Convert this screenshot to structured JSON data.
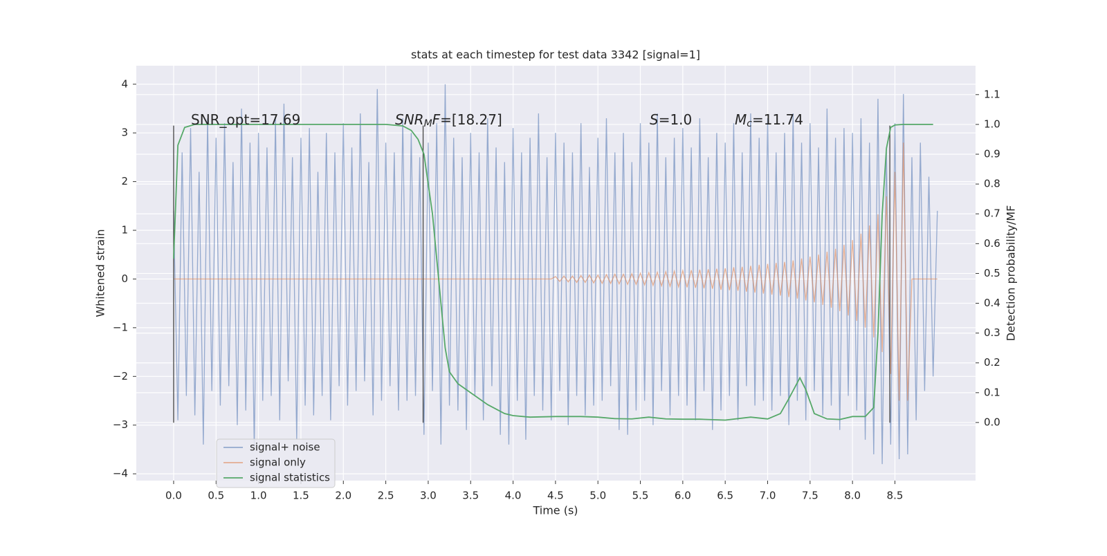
{
  "chart_data": {
    "type": "line",
    "title": "stats at each timestep for test data 3342 [signal=1]",
    "xlabel": "Time (s)",
    "ylabel": "Whitened strain",
    "y2label": "Detection probability/MF",
    "xlim": [
      -0.44,
      9.45
    ],
    "ylim": [
      -4.14,
      4.38
    ],
    "y2lim": [
      -0.195,
      1.197
    ],
    "xticks": [
      {
        "value": 0,
        "label": "0.0"
      },
      0.5,
      {
        "value": 1,
        "label": "1.0"
      },
      1.5,
      {
        "value": 2,
        "label": "2.0"
      },
      2.5,
      {
        "value": 3,
        "label": "3.0"
      },
      3.5,
      {
        "value": 4,
        "label": "4.0"
      },
      4.5,
      {
        "value": 5,
        "label": "5.0"
      },
      5.5,
      {
        "value": 6,
        "label": "6.0"
      },
      6.5,
      {
        "value": 7,
        "label": "7.0"
      },
      7.5,
      {
        "value": 8,
        "label": "8.0"
      },
      8.5
    ],
    "yticks": [
      {
        "value": -4,
        "label": "−4"
      },
      {
        "value": -3,
        "label": "−3"
      },
      {
        "value": -2,
        "label": "−2"
      },
      {
        "value": -1,
        "label": "−1"
      },
      0,
      1,
      2,
      3,
      4
    ],
    "y2ticks": [
      {
        "value": 0,
        "label": "0.0"
      },
      0.1,
      0.2,
      0.3,
      0.4,
      0.5,
      0.6,
      0.7,
      0.8,
      0.9,
      {
        "value": 1,
        "label": "1.0"
      },
      1.1
    ],
    "grid": true,
    "series": [
      {
        "name": "signal+ noise",
        "color": "#4c72b0",
        "alpha": 0.55,
        "x": [
          0,
          0.05,
          0.1,
          0.15,
          0.2,
          0.25,
          0.3,
          0.35,
          0.4,
          0.45,
          0.5,
          0.55,
          0.6,
          0.65,
          0.7,
          0.75,
          0.8,
          0.85,
          0.9,
          0.95,
          1,
          1.05,
          1.1,
          1.15,
          1.2,
          1.25,
          1.3,
          1.35,
          1.4,
          1.45,
          1.5,
          1.55,
          1.6,
          1.65,
          1.7,
          1.75,
          1.8,
          1.85,
          1.9,
          1.95,
          2,
          2.05,
          2.1,
          2.15,
          2.2,
          2.25,
          2.3,
          2.35,
          2.4,
          2.45,
          2.5,
          2.55,
          2.6,
          2.65,
          2.7,
          2.75,
          2.8,
          2.85,
          2.9,
          2.95,
          3,
          3.05,
          3.1,
          3.15,
          3.2,
          3.25,
          3.3,
          3.35,
          3.4,
          3.45,
          3.5,
          3.55,
          3.6,
          3.65,
          3.7,
          3.75,
          3.8,
          3.85,
          3.9,
          3.95,
          4,
          4.05,
          4.1,
          4.15,
          4.2,
          4.25,
          4.3,
          4.35,
          4.4,
          4.45,
          4.5,
          4.55,
          4.6,
          4.65,
          4.7,
          4.75,
          4.8,
          4.85,
          4.9,
          4.95,
          5,
          5.05,
          5.1,
          5.15,
          5.2,
          5.25,
          5.3,
          5.35,
          5.4,
          5.45,
          5.5,
          5.55,
          5.6,
          5.65,
          5.7,
          5.75,
          5.8,
          5.85,
          5.9,
          5.95,
          6,
          6.05,
          6.1,
          6.15,
          6.2,
          6.25,
          6.3,
          6.35,
          6.4,
          6.45,
          6.5,
          6.55,
          6.6,
          6.65,
          6.7,
          6.75,
          6.8,
          6.85,
          6.9,
          6.95,
          7,
          7.05,
          7.1,
          7.15,
          7.2,
          7.25,
          7.3,
          7.35,
          7.4,
          7.45,
          7.5,
          7.55,
          7.6,
          7.65,
          7.7,
          7.75,
          7.8,
          7.85,
          7.9,
          7.95,
          8,
          8.05,
          8.1,
          8.15,
          8.2,
          8.25,
          8.3,
          8.35,
          8.4,
          8.45,
          8.5,
          8.55,
          8.6,
          8.65,
          8.7,
          8.75,
          8.8,
          8.85,
          8.9,
          8.95,
          9
        ],
        "values": [
          1.4,
          -2.9,
          2.6,
          -2.4,
          3.1,
          -2.8,
          2.2,
          -3.4,
          3.3,
          -2.3,
          2.9,
          -2.6,
          3.2,
          -2.2,
          2.4,
          -3.0,
          3.5,
          -2.7,
          2.8,
          -3.5,
          3.0,
          -2.5,
          2.7,
          -2.4,
          3.3,
          -2.9,
          3.6,
          -2.1,
          2.5,
          -3.3,
          2.9,
          -2.6,
          3.1,
          -2.8,
          2.2,
          -2.4,
          3.0,
          -2.9,
          2.6,
          -2.2,
          3.2,
          -2.6,
          2.7,
          -2.3,
          3.4,
          -2.1,
          2.4,
          -2.8,
          3.9,
          -2.5,
          2.8,
          -2.2,
          2.6,
          -2.7,
          3.3,
          -2.5,
          3.0,
          -2.4,
          2.5,
          -3.2,
          2.8,
          -2.3,
          3.2,
          -3.4,
          4.0,
          -2.6,
          2.9,
          -2.7,
          2.5,
          -3.1,
          3.0,
          -2.4,
          2.6,
          -2.9,
          3.3,
          -2.2,
          2.7,
          -3.2,
          2.4,
          -3.4,
          3.1,
          -2.5,
          2.6,
          -3.3,
          2.9,
          -2.4,
          3.4,
          -2.7,
          2.5,
          -2.9,
          3.0,
          -2.3,
          2.8,
          -3.0,
          2.6,
          -2.4,
          3.2,
          -2.8,
          2.3,
          -2.6,
          2.9,
          -2.5,
          3.3,
          -2.2,
          2.6,
          -3.1,
          3.0,
          -3.2,
          2.4,
          -2.7,
          3.2,
          -2.5,
          2.8,
          -3.0,
          3.4,
          -2.3,
          2.5,
          -2.8,
          2.9,
          -2.4,
          3.1,
          -2.6,
          2.7,
          -2.9,
          3.3,
          -2.3,
          2.5,
          -3.1,
          3.0,
          -2.7,
          2.8,
          -2.4,
          3.2,
          -2.9,
          2.6,
          -2.2,
          3.4,
          -2.6,
          2.9,
          -2.5,
          3.3,
          -2.7,
          2.6,
          -2.4,
          3.0,
          -3.0,
          3.4,
          -2.5,
          2.8,
          -2.9,
          3.2,
          -2.3,
          2.7,
          -2.8,
          3.5,
          -2.6,
          2.9,
          -3.1,
          3.1,
          -2.4,
          3.0,
          -2.7,
          3.3,
          -3.3,
          2.8,
          -3.6,
          3.7,
          -3.8,
          2.6,
          -3.4,
          3.2,
          -3.7,
          3.8,
          -3.6,
          2.5,
          -2.9,
          2.8,
          -2.3,
          2.1,
          -2.0,
          1.4
        ]
      },
      {
        "name": "signal only",
        "color": "#dd8452",
        "alpha": 0.6,
        "x": [
          0,
          4.45,
          4.5,
          4.55,
          4.6,
          4.65,
          4.7,
          4.75,
          4.8,
          4.85,
          4.9,
          4.95,
          5,
          5.05,
          5.1,
          5.15,
          5.2,
          5.25,
          5.3,
          5.35,
          5.4,
          5.45,
          5.5,
          5.55,
          5.6,
          5.65,
          5.7,
          5.75,
          5.8,
          5.85,
          5.9,
          5.95,
          6,
          6.05,
          6.1,
          6.15,
          6.2,
          6.25,
          6.3,
          6.35,
          6.4,
          6.45,
          6.5,
          6.55,
          6.6,
          6.65,
          6.7,
          6.75,
          6.8,
          6.85,
          6.9,
          6.95,
          7,
          7.05,
          7.1,
          7.15,
          7.2,
          7.25,
          7.3,
          7.35,
          7.4,
          7.45,
          7.5,
          7.55,
          7.6,
          7.65,
          7.7,
          7.75,
          7.8,
          7.85,
          7.9,
          7.95,
          8,
          8.05,
          8.1,
          8.15,
          8.2,
          8.25,
          8.3,
          8.35,
          8.4,
          8.45,
          8.5,
          8.55,
          8.6,
          8.65,
          8.7,
          9
        ],
        "values": [
          0,
          0,
          0.05,
          -0.05,
          0.06,
          -0.06,
          0.06,
          -0.07,
          0.07,
          -0.07,
          0.08,
          -0.08,
          0.08,
          -0.09,
          0.09,
          -0.09,
          0.1,
          -0.1,
          0.1,
          -0.11,
          0.11,
          -0.11,
          0.12,
          -0.12,
          0.13,
          -0.13,
          0.14,
          -0.14,
          0.15,
          -0.15,
          0.16,
          -0.16,
          0.17,
          -0.17,
          0.18,
          -0.18,
          0.19,
          -0.19,
          0.2,
          -0.2,
          0.21,
          -0.22,
          0.22,
          -0.23,
          0.24,
          -0.24,
          0.25,
          -0.26,
          0.27,
          -0.28,
          0.29,
          -0.3,
          0.31,
          -0.32,
          0.33,
          -0.34,
          0.35,
          -0.37,
          0.38,
          -0.4,
          0.42,
          -0.44,
          0.46,
          -0.48,
          0.5,
          -0.53,
          0.56,
          -0.59,
          0.62,
          -0.66,
          0.7,
          -0.75,
          0.8,
          -0.86,
          0.93,
          -1.0,
          1.1,
          -1.2,
          1.33,
          -1.5,
          1.7,
          -1.95,
          2.2,
          -2.5,
          2.8,
          -2.5,
          0,
          0
        ]
      },
      {
        "name": "signal statistics",
        "color": "#55a868",
        "axis": "y2",
        "x": [
          0,
          0.05,
          0.13,
          0.25,
          0.5,
          1,
          1.5,
          2,
          2.5,
          2.7,
          2.8,
          2.88,
          2.95,
          3,
          3.05,
          3.1,
          3.15,
          3.2,
          3.25,
          3.35,
          3.5,
          3.7,
          3.9,
          4,
          4.2,
          4.5,
          4.8,
          5,
          5.2,
          5.4,
          5.6,
          5.8,
          6,
          6.2,
          6.5,
          6.8,
          7,
          7.15,
          7.25,
          7.38,
          7.45,
          7.55,
          7.7,
          7.85,
          8,
          8.15,
          8.25,
          8.3,
          8.35,
          8.4,
          8.45,
          8.5,
          8.6,
          8.95
        ],
        "values": [
          0.55,
          0.93,
          0.99,
          1.0,
          1.0,
          1.0,
          1.0,
          1.0,
          1.0,
          0.995,
          0.98,
          0.95,
          0.9,
          0.8,
          0.7,
          0.55,
          0.4,
          0.25,
          0.17,
          0.13,
          0.1,
          0.06,
          0.03,
          0.023,
          0.018,
          0.02,
          0.02,
          0.018,
          0.013,
          0.012,
          0.018,
          0.012,
          0.011,
          0.011,
          0.008,
          0.018,
          0.012,
          0.03,
          0.08,
          0.15,
          0.11,
          0.03,
          0.012,
          0.01,
          0.02,
          0.02,
          0.05,
          0.3,
          0.7,
          0.92,
          0.99,
          0.998,
          1.0,
          1.0
        ]
      }
    ],
    "vlines": [
      {
        "x": 0,
        "y": [
          -2.95,
          3.15
        ]
      },
      {
        "x": 2.94,
        "y": [
          -2.95,
          3.15
        ]
      },
      {
        "x": 8.44,
        "y": [
          -2.95,
          3.15
        ]
      }
    ],
    "annotations": [
      [
        {
          "text": "SNR_opt=17.69",
          "style": "normal"
        }
      ],
      [
        {
          "text": "SNR",
          "style": "italic"
        },
        {
          "text": "M",
          "style": "sub"
        },
        {
          "text": "F",
          "style": "italic"
        },
        {
          "text": "=[18.27]",
          "style": "normal"
        }
      ],
      [
        {
          "text": "S",
          "style": "italic"
        },
        {
          "text": "=1.0",
          "style": "normal"
        }
      ],
      [
        {
          "text": "M",
          "style": "italic"
        },
        {
          "text": "c",
          "style": "sub"
        },
        {
          "text": "=11.74",
          "style": "normal"
        }
      ]
    ],
    "legend": "lower left"
  }
}
